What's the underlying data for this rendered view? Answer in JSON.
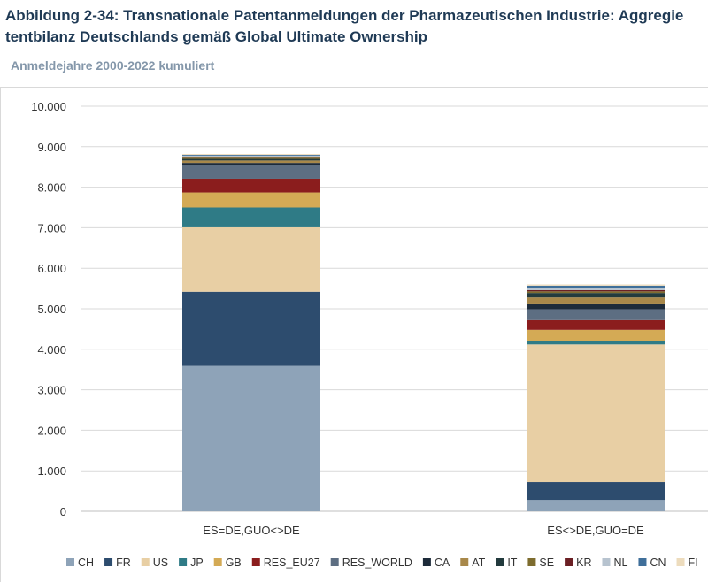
{
  "title_line1": "Abbildung 2-34: Transnationale Patentanmeldungen der Pharmazeutischen Industrie: Aggregie",
  "title_line2": "tentbilanz Deutschlands gemäß Global Ultimate Ownership",
  "subtitle": "Anmeldejahre 2000-2022 kumuliert",
  "chart_data": {
    "type": "bar",
    "stacked": true,
    "categories": [
      "ES=DE,GUO<>DE",
      "ES<>DE,GUO=DE"
    ],
    "ylim": [
      0,
      10000
    ],
    "yticks": [
      0,
      1000,
      2000,
      3000,
      4000,
      5000,
      6000,
      7000,
      8000,
      9000,
      10000
    ],
    "ytick_labels": [
      "0",
      "1.000",
      "2.000",
      "3.000",
      "4.000",
      "5.000",
      "6.000",
      "7.000",
      "8.000",
      "9.000",
      "10.000"
    ],
    "grid": true,
    "legend_position": "bottom",
    "series": [
      {
        "name": "CH",
        "color": "#8ea3b8",
        "values": [
          3590,
          280
        ]
      },
      {
        "name": "FR",
        "color": "#2d4c6e",
        "values": [
          1830,
          440
        ]
      },
      {
        "name": "US",
        "color": "#e8cfa4",
        "values": [
          1590,
          3400
        ]
      },
      {
        "name": "JP",
        "color": "#2f7b86",
        "values": [
          490,
          90
        ]
      },
      {
        "name": "GB",
        "color": "#d4aa55",
        "values": [
          370,
          270
        ]
      },
      {
        "name": "RES_EU27",
        "color": "#8b1d1d",
        "values": [
          340,
          240
        ]
      },
      {
        "name": "RES_WORLD",
        "color": "#5d6e82",
        "values": [
          330,
          270
        ]
      },
      {
        "name": "CA",
        "color": "#1d2b3a",
        "values": [
          60,
          120
        ]
      },
      {
        "name": "AT",
        "color": "#a8884a",
        "values": [
          60,
          170
        ]
      },
      {
        "name": "IT",
        "color": "#223a3d",
        "values": [
          40,
          110
        ]
      },
      {
        "name": "SE",
        "color": "#7d6c2e",
        "values": [
          30,
          40
        ]
      },
      {
        "name": "KR",
        "color": "#6b1f24",
        "values": [
          20,
          30
        ]
      },
      {
        "name": "NL",
        "color": "#b7c3cf",
        "values": [
          30,
          50
        ]
      },
      {
        "name": "CN",
        "color": "#3f6f9a",
        "values": [
          20,
          60
        ]
      },
      {
        "name": "FI",
        "color": "#eddcbd",
        "values": [
          20,
          30
        ]
      }
    ]
  }
}
